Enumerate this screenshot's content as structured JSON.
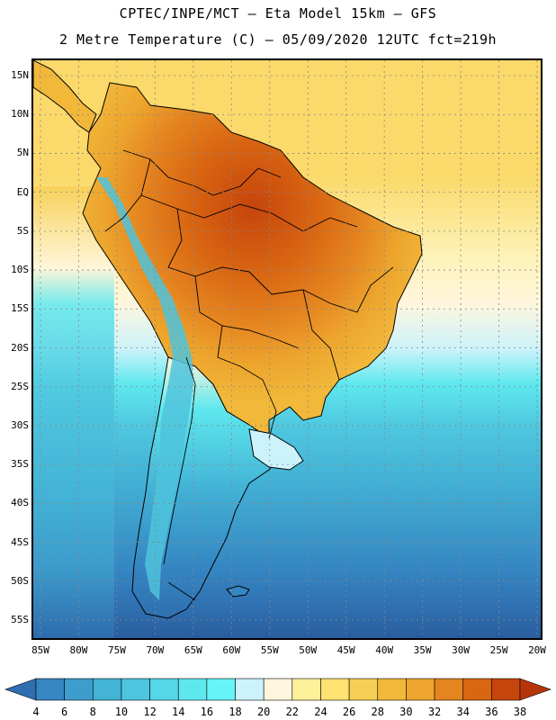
{
  "header": {
    "line1": "CPTEC/INPE/MCT –  Eta Model 15km – GFS",
    "line2": "2 Metre Temperature (C) – 05/09/2020 12UTC fct=219h"
  },
  "axes": {
    "lat_labels": [
      "15N",
      "10N",
      "5N",
      "EQ",
      "5S",
      "10S",
      "15S",
      "20S",
      "25S",
      "30S",
      "35S",
      "40S",
      "45S",
      "50S",
      "55S"
    ],
    "lat_values": [
      15,
      10,
      5,
      0,
      -5,
      -10,
      -15,
      -20,
      -25,
      -30,
      -35,
      -40,
      -45,
      -50,
      -55
    ],
    "lon_labels": [
      "85W",
      "80W",
      "75W",
      "70W",
      "65W",
      "60W",
      "55W",
      "50W",
      "45W",
      "40W",
      "35W",
      "30W",
      "25W",
      "20W"
    ],
    "lon_values": [
      -85,
      -80,
      -75,
      -70,
      -65,
      -60,
      -55,
      -50,
      -45,
      -40,
      -35,
      -30,
      -25,
      -20
    ]
  },
  "legend": {
    "labels": [
      "4",
      "6",
      "8",
      "10",
      "12",
      "14",
      "16",
      "18",
      "20",
      "22",
      "24",
      "26",
      "28",
      "30",
      "32",
      "34",
      "36",
      "38"
    ],
    "colors": [
      "#2f6fb0",
      "#3586c2",
      "#3d9dcc",
      "#43b3d6",
      "#4ec5de",
      "#56d6e6",
      "#5ee8ee",
      "#66f4f8",
      "#ccf3fb",
      "#fff6dd",
      "#fff09a",
      "#ffe270",
      "#f7cf55",
      "#f1b83a",
      "#eda52d",
      "#e58520",
      "#d96612",
      "#c5450c",
      "#b7340a"
    ]
  },
  "colors": {
    "ocean_cold": "#2a5d9e",
    "ocean_mid": "#3d9dcc",
    "ocean_warm": "#4ec5de",
    "ocean_tropical": "#fbdc6c",
    "land_hot": "#c95a16",
    "land_warm": "#eda52d",
    "andes": "#4fc3dc",
    "outline": "#000000"
  }
}
